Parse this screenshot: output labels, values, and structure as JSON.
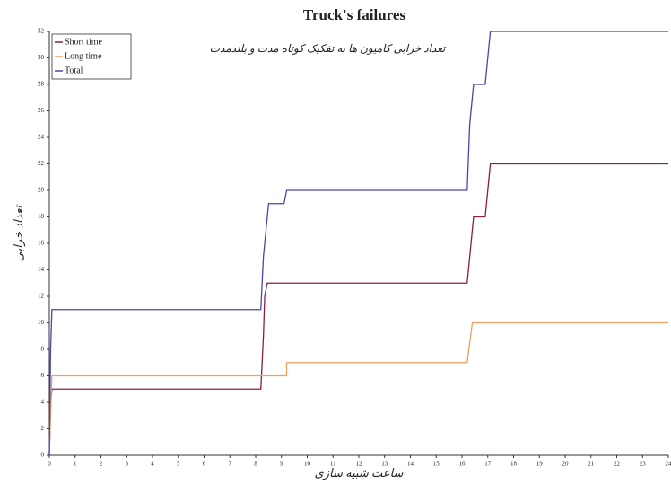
{
  "chart_data": {
    "type": "line",
    "title": "Truck's failures",
    "subtitle": "تعداد خرابی کامیون ها به تفکیک کوتاه مدت و بلندمدت",
    "x_label": "ساعت شبیه سازی",
    "y_label": "تعداد خرابی",
    "xlim": [
      0,
      24
    ],
    "ylim": [
      0,
      32
    ],
    "xticks": [
      0,
      1,
      2,
      3,
      4,
      5,
      6,
      7,
      8,
      9,
      10,
      11,
      12,
      13,
      14,
      15,
      16,
      17,
      18,
      19,
      20,
      21,
      22,
      23,
      24
    ],
    "yticks": [
      0,
      2,
      4,
      6,
      8,
      10,
      12,
      14,
      16,
      18,
      20,
      22,
      24,
      26,
      28,
      30,
      32
    ],
    "legend": "top-left",
    "series": [
      {
        "name": "Short time",
        "color": "#8b1c4c",
        "x": [
          0,
          0.05,
          0.1,
          8.2,
          8.3,
          8.35,
          8.45,
          16.2,
          16.3,
          16.35,
          16.45,
          16.9,
          17.0,
          17.1,
          24
        ],
        "values": [
          0,
          4,
          5,
          5,
          9,
          12,
          13,
          13,
          15,
          16,
          18,
          18,
          20,
          22,
          22
        ]
      },
      {
        "name": "Long time",
        "color": "#f0a060",
        "x": [
          0,
          0.1,
          9.2,
          9.2,
          16.2,
          16.4,
          24
        ],
        "values": [
          0,
          6,
          6,
          7,
          7,
          10,
          10
        ]
      },
      {
        "name": "Total",
        "color": "#4848a8",
        "x": [
          0,
          0.05,
          0.1,
          8.2,
          8.3,
          8.4,
          8.5,
          9.1,
          9.2,
          16.2,
          16.3,
          16.35,
          16.45,
          16.9,
          17.0,
          17.1,
          24
        ],
        "values": [
          0,
          8,
          11,
          11,
          15,
          17,
          19,
          19,
          20,
          20,
          25,
          26,
          28,
          28,
          30,
          32,
          32
        ]
      }
    ]
  }
}
